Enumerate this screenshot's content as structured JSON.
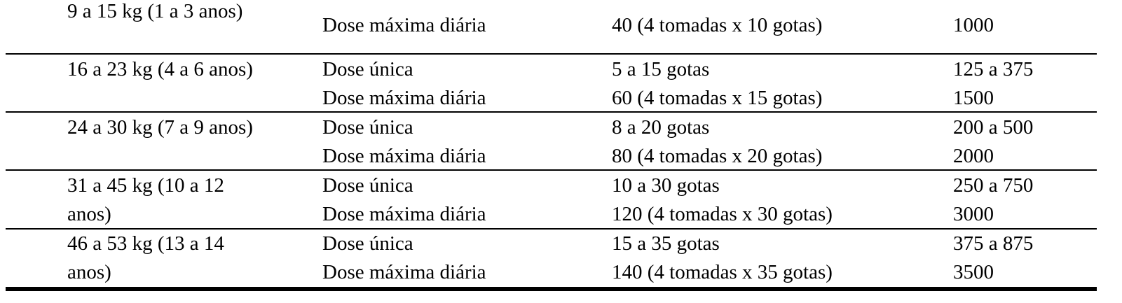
{
  "table": {
    "rows": [
      {
        "weight": "9 a 15 kg (1 a 3 anos)",
        "doses": [
          [
            "Dose máxima diária",
            "40 (4 tomadas x 10 gotas)",
            "1000"
          ]
        ]
      },
      {
        "weight": "16 a 23 kg (4 a 6 anos)",
        "doses": [
          [
            "Dose única",
            "5 a 15 gotas",
            "125 a 375"
          ],
          [
            "Dose máxima diária",
            "60 (4 tomadas x 15 gotas)",
            "1500"
          ]
        ]
      },
      {
        "weight": "24 a 30 kg (7 a 9 anos)",
        "doses": [
          [
            "Dose única",
            "8 a 20 gotas",
            "200 a 500"
          ],
          [
            "Dose máxima diária",
            "80 (4 tomadas x 20 gotas)",
            "2000"
          ]
        ]
      },
      {
        "weight": "31 a 45 kg (10 a 12 anos)",
        "doses": [
          [
            "Dose única",
            "10 a 30 gotas",
            "250 a 750"
          ],
          [
            "Dose máxima diária",
            "120 (4 tomadas x 30 gotas)",
            "3000"
          ]
        ]
      },
      {
        "weight": "46 a 53 kg (13 a 14 anos)",
        "doses": [
          [
            "Dose única",
            "15 a 35 gotas",
            "375 a 875"
          ],
          [
            "Dose máxima diária",
            "140 (4 tomadas x 35 gotas)",
            "3500"
          ]
        ]
      }
    ]
  }
}
